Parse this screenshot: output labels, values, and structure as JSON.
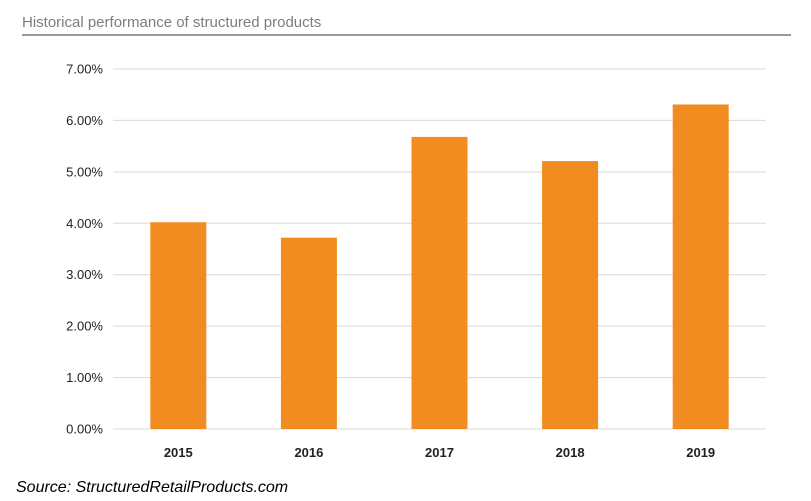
{
  "colors": {
    "bar": "#f28b20",
    "gridline": "#d9d9d9",
    "header_rule": "#9a9a9a",
    "title_text": "#7d7d7d"
  },
  "chart_data": {
    "type": "bar",
    "title": "Historical performance of structured products",
    "categories": [
      "2015",
      "2016",
      "2017",
      "2018",
      "2019"
    ],
    "values": [
      4.02,
      3.72,
      5.68,
      5.21,
      6.31
    ],
    "yticks": [
      "0.00%",
      "1.00%",
      "2.00%",
      "3.00%",
      "4.00%",
      "5.00%",
      "6.00%",
      "7.00%"
    ],
    "ylim": [
      0,
      7
    ],
    "y_unit": "%",
    "grid": true,
    "legend": "none",
    "xlabel": "",
    "ylabel": "",
    "source": "Source: StructuredRetailProducts.com"
  }
}
